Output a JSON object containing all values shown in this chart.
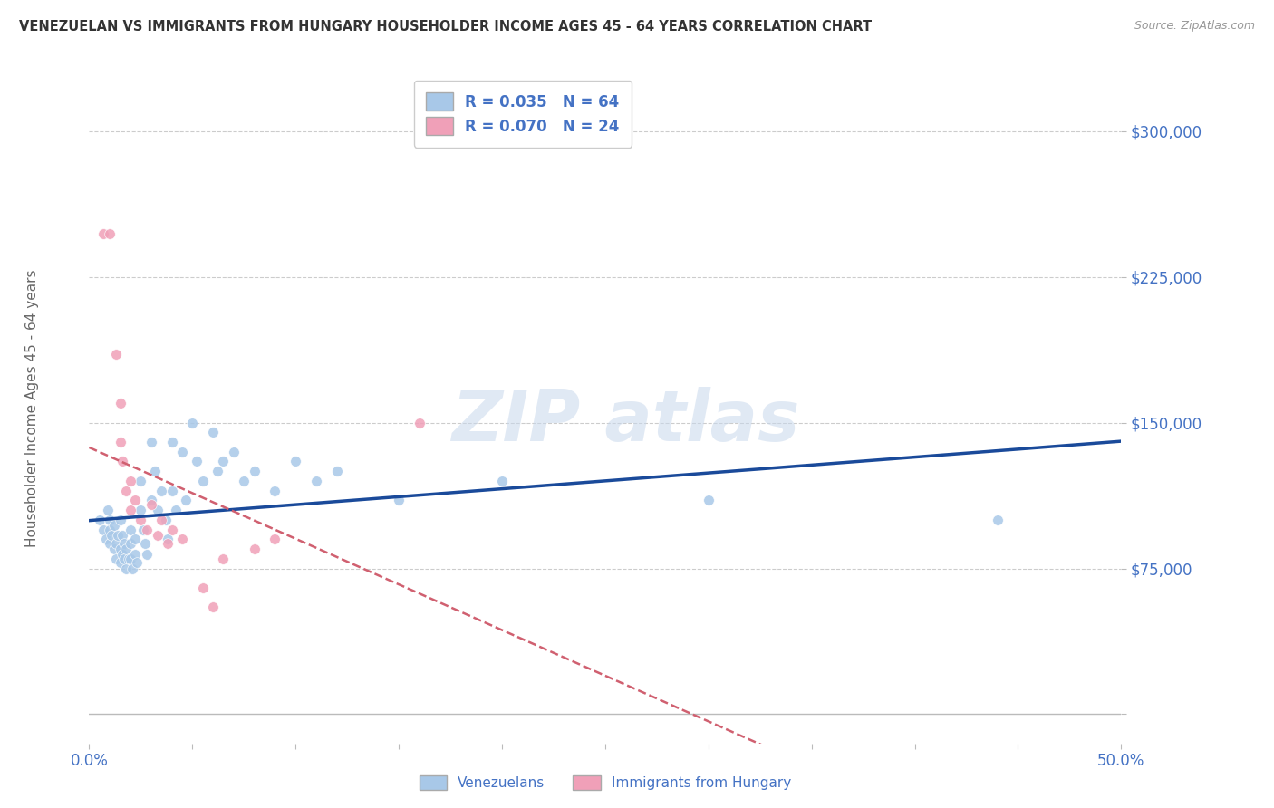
{
  "title": "VENEZUELAN VS IMMIGRANTS FROM HUNGARY HOUSEHOLDER INCOME AGES 45 - 64 YEARS CORRELATION CHART",
  "source": "Source: ZipAtlas.com",
  "ylabel": "Householder Income Ages 45 - 64 years",
  "xlim": [
    0.0,
    0.5
  ],
  "ylim": [
    -15000,
    330000
  ],
  "yticks": [
    0,
    75000,
    150000,
    225000,
    300000
  ],
  "ytick_labels": [
    "",
    "$75,000",
    "$150,000",
    "$225,000",
    "$300,000"
  ],
  "xticks": [
    0.0,
    0.05,
    0.1,
    0.15,
    0.2,
    0.25,
    0.3,
    0.35,
    0.4,
    0.45,
    0.5
  ],
  "xtick_labels": [
    "0.0%",
    "",
    "",
    "",
    "",
    "",
    "",
    "",
    "",
    "",
    "50.0%"
  ],
  "venezuelans_color": "#a8c8e8",
  "hungary_color": "#f0a0b8",
  "trend_blue_color": "#1a4a9a",
  "trend_pink_color": "#d06070",
  "R_venezuelans": 0.035,
  "N_venezuelans": 64,
  "R_hungary": 0.07,
  "N_hungary": 24,
  "background_color": "#ffffff",
  "grid_color": "#cccccc",
  "axis_label_color": "#4472c4",
  "venezuelans_x": [
    0.005,
    0.007,
    0.008,
    0.009,
    0.01,
    0.01,
    0.01,
    0.011,
    0.012,
    0.012,
    0.013,
    0.013,
    0.014,
    0.015,
    0.015,
    0.015,
    0.016,
    0.016,
    0.017,
    0.017,
    0.018,
    0.018,
    0.019,
    0.02,
    0.02,
    0.02,
    0.021,
    0.022,
    0.022,
    0.023,
    0.025,
    0.025,
    0.026,
    0.027,
    0.028,
    0.03,
    0.03,
    0.032,
    0.033,
    0.035,
    0.037,
    0.038,
    0.04,
    0.04,
    0.042,
    0.045,
    0.047,
    0.05,
    0.052,
    0.055,
    0.06,
    0.062,
    0.065,
    0.07,
    0.075,
    0.08,
    0.09,
    0.1,
    0.11,
    0.12,
    0.15,
    0.2,
    0.3,
    0.44
  ],
  "venezuelans_y": [
    100000,
    95000,
    90000,
    105000,
    100000,
    95000,
    88000,
    92000,
    97000,
    85000,
    80000,
    88000,
    92000,
    100000,
    85000,
    78000,
    92000,
    82000,
    88000,
    80000,
    85000,
    75000,
    80000,
    95000,
    88000,
    80000,
    75000,
    90000,
    82000,
    78000,
    120000,
    105000,
    95000,
    88000,
    82000,
    140000,
    110000,
    125000,
    105000,
    115000,
    100000,
    90000,
    140000,
    115000,
    105000,
    135000,
    110000,
    150000,
    130000,
    120000,
    145000,
    125000,
    130000,
    135000,
    120000,
    125000,
    115000,
    130000,
    120000,
    125000,
    110000,
    120000,
    110000,
    100000
  ],
  "hungary_x": [
    0.007,
    0.01,
    0.013,
    0.015,
    0.015,
    0.016,
    0.018,
    0.02,
    0.02,
    0.022,
    0.025,
    0.028,
    0.03,
    0.033,
    0.035,
    0.038,
    0.04,
    0.045,
    0.055,
    0.06,
    0.065,
    0.08,
    0.09,
    0.16
  ],
  "hungary_y": [
    247000,
    247000,
    185000,
    160000,
    140000,
    130000,
    115000,
    120000,
    105000,
    110000,
    100000,
    95000,
    108000,
    92000,
    100000,
    88000,
    95000,
    90000,
    65000,
    55000,
    80000,
    85000,
    90000,
    150000
  ],
  "hun_trend_x_start": 0.0,
  "hun_trend_x_end": 0.5,
  "ven_trend_x_start": 0.0,
  "ven_trend_x_end": 0.5
}
